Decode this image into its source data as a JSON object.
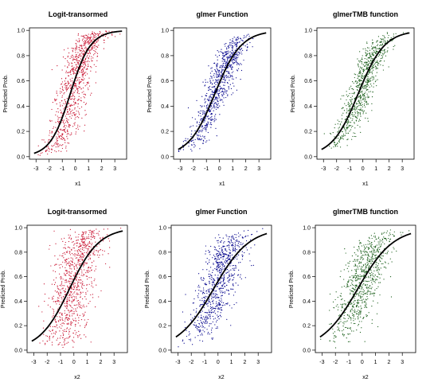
{
  "chart_data": [
    {
      "type": "scatter",
      "title": "Logit-transormed",
      "xlabel": "x1",
      "ylabel": "Predicted Prob.",
      "xlim": [
        -3.5,
        3.9
      ],
      "ylim": [
        -0.02,
        1.02
      ],
      "xticks": [
        -3,
        -2,
        -1,
        0,
        1,
        2,
        3
      ],
      "yticks": [
        0.0,
        0.2,
        0.4,
        0.6,
        0.8,
        1.0
      ],
      "point_color": "#c8102e",
      "curve_color": "#000000",
      "curve": {
        "b0": 0.5,
        "b1": 1.3
      },
      "scatter": {
        "n": 900,
        "x_mean": 0,
        "x_sd": 1,
        "spread": 0.9,
        "seed": 11
      }
    },
    {
      "type": "scatter",
      "title": "glmer Function",
      "xlabel": "x1",
      "ylabel": "Predicted Prob.",
      "xlim": [
        -3.5,
        3.9
      ],
      "ylim": [
        -0.02,
        1.02
      ],
      "xticks": [
        -3,
        -2,
        -1,
        0,
        1,
        2,
        3
      ],
      "yticks": [
        0.0,
        0.2,
        0.4,
        0.6,
        0.8,
        1.0
      ],
      "point_color": "#00008b",
      "curve_color": "#000000",
      "curve": {
        "b0": 0.35,
        "b1": 1.0
      },
      "scatter": {
        "n": 800,
        "x_mean": 0,
        "x_sd": 1,
        "spread": 0.55,
        "seed": 22
      }
    },
    {
      "type": "scatter",
      "title": "glmerTMB function",
      "xlabel": "x1",
      "ylabel": "Predicted Prob.",
      "xlim": [
        -3.5,
        3.9
      ],
      "ylim": [
        -0.02,
        1.02
      ],
      "xticks": [
        -3,
        -2,
        -1,
        0,
        1,
        2,
        3
      ],
      "yticks": [
        0.0,
        0.2,
        0.4,
        0.6,
        0.8,
        1.0
      ],
      "point_color": "#1a5e1a",
      "curve_color": "#000000",
      "curve": {
        "b0": 0.35,
        "b1": 1.0
      },
      "scatter": {
        "n": 800,
        "x_mean": 0,
        "x_sd": 1,
        "spread": 0.55,
        "seed": 33
      }
    },
    {
      "type": "scatter",
      "title": "Logit-transormed",
      "xlabel": "x2",
      "ylabel": "Predicted Prob.",
      "xlim": [
        -3.5,
        4.0
      ],
      "ylim": [
        -0.02,
        1.02
      ],
      "xticks": [
        -3,
        -2,
        -1,
        0,
        1,
        2,
        3
      ],
      "yticks": [
        0.0,
        0.2,
        0.4,
        0.6,
        0.8,
        1.0
      ],
      "point_color": "#c8102e",
      "curve_color": "#000000",
      "curve": {
        "b0": 0.3,
        "b1": 0.9
      },
      "scatter": {
        "n": 900,
        "x_mean": 0,
        "x_sd": 1,
        "spread": 1.2,
        "seed": 44
      }
    },
    {
      "type": "scatter",
      "title": "glmer Function",
      "xlabel": "x2",
      "ylabel": "Predicted Prob.",
      "xlim": [
        -3.5,
        4.0
      ],
      "ylim": [
        -0.02,
        1.02
      ],
      "xticks": [
        -3,
        -2,
        -1,
        0,
        1,
        2,
        3
      ],
      "yticks": [
        0.0,
        0.2,
        0.4,
        0.6,
        0.8,
        1.0
      ],
      "point_color": "#00008b",
      "curve_color": "#000000",
      "curve": {
        "b0": 0.25,
        "b1": 0.75
      },
      "scatter": {
        "n": 800,
        "x_mean": 0,
        "x_sd": 1,
        "spread": 0.8,
        "seed": 55
      }
    },
    {
      "type": "scatter",
      "title": "glmerTMB function",
      "xlabel": "x2",
      "ylabel": "Predicted Prob.",
      "xlim": [
        -3.5,
        4.0
      ],
      "ylim": [
        -0.02,
        1.02
      ],
      "xticks": [
        -3,
        -2,
        -1,
        0,
        1,
        2,
        3
      ],
      "yticks": [
        0.0,
        0.2,
        0.4,
        0.6,
        0.8,
        1.0
      ],
      "point_color": "#1a5e1a",
      "curve_color": "#000000",
      "curve": {
        "b0": 0.25,
        "b1": 0.75
      },
      "scatter": {
        "n": 800,
        "x_mean": 0,
        "x_sd": 1,
        "spread": 0.8,
        "seed": 66
      }
    }
  ]
}
